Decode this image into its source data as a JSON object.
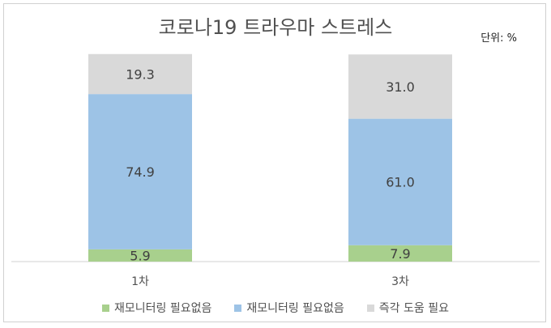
{
  "title": "코로나19 트라우마 스트레스",
  "unit_label": "단위: %",
  "chart_data": {
    "type": "bar",
    "stacked": true,
    "title": "코로나19 트라우마 스트레스",
    "categories": [
      "1차",
      "3차"
    ],
    "series": [
      {
        "name": "재모니터링 필요없음",
        "values": [
          5.9,
          7.9
        ],
        "color": "#a8d08d"
      },
      {
        "name": "재모니터링 필요없음",
        "values": [
          74.9,
          61.0
        ],
        "color": "#9dc3e6"
      },
      {
        "name": "즉각 도움 필요",
        "values": [
          19.3,
          31.0
        ],
        "color": "#d9d9d9"
      }
    ],
    "data_labels": [
      [
        "5.9",
        "7.9"
      ],
      [
        "74.9",
        "61.0"
      ],
      [
        "19.3",
        "31.0"
      ]
    ],
    "ylim": [
      0,
      100
    ],
    "grid": false,
    "legend_position": "bottom"
  }
}
